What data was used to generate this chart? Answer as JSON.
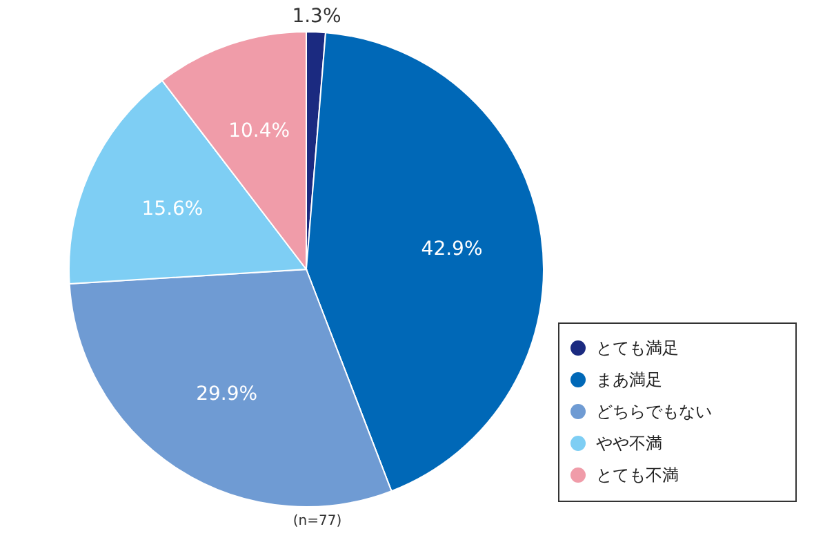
{
  "chart_data": {
    "type": "pie",
    "categories": [
      "とても満足",
      "まあ満足",
      "どちらでもない",
      "やや不満",
      "とても不満"
    ],
    "values": [
      1.3,
      42.9,
      29.9,
      15.6,
      10.4
    ],
    "colors": [
      "#1b2a80",
      "#0068b7",
      "#6f9bd3",
      "#7ecef4",
      "#f09ca9"
    ],
    "value_labels": [
      "1.3%",
      "42.9%",
      "29.9%",
      "15.6%",
      "10.4%"
    ],
    "annotations": [
      "(n=77)"
    ],
    "legend": "bottom right"
  }
}
